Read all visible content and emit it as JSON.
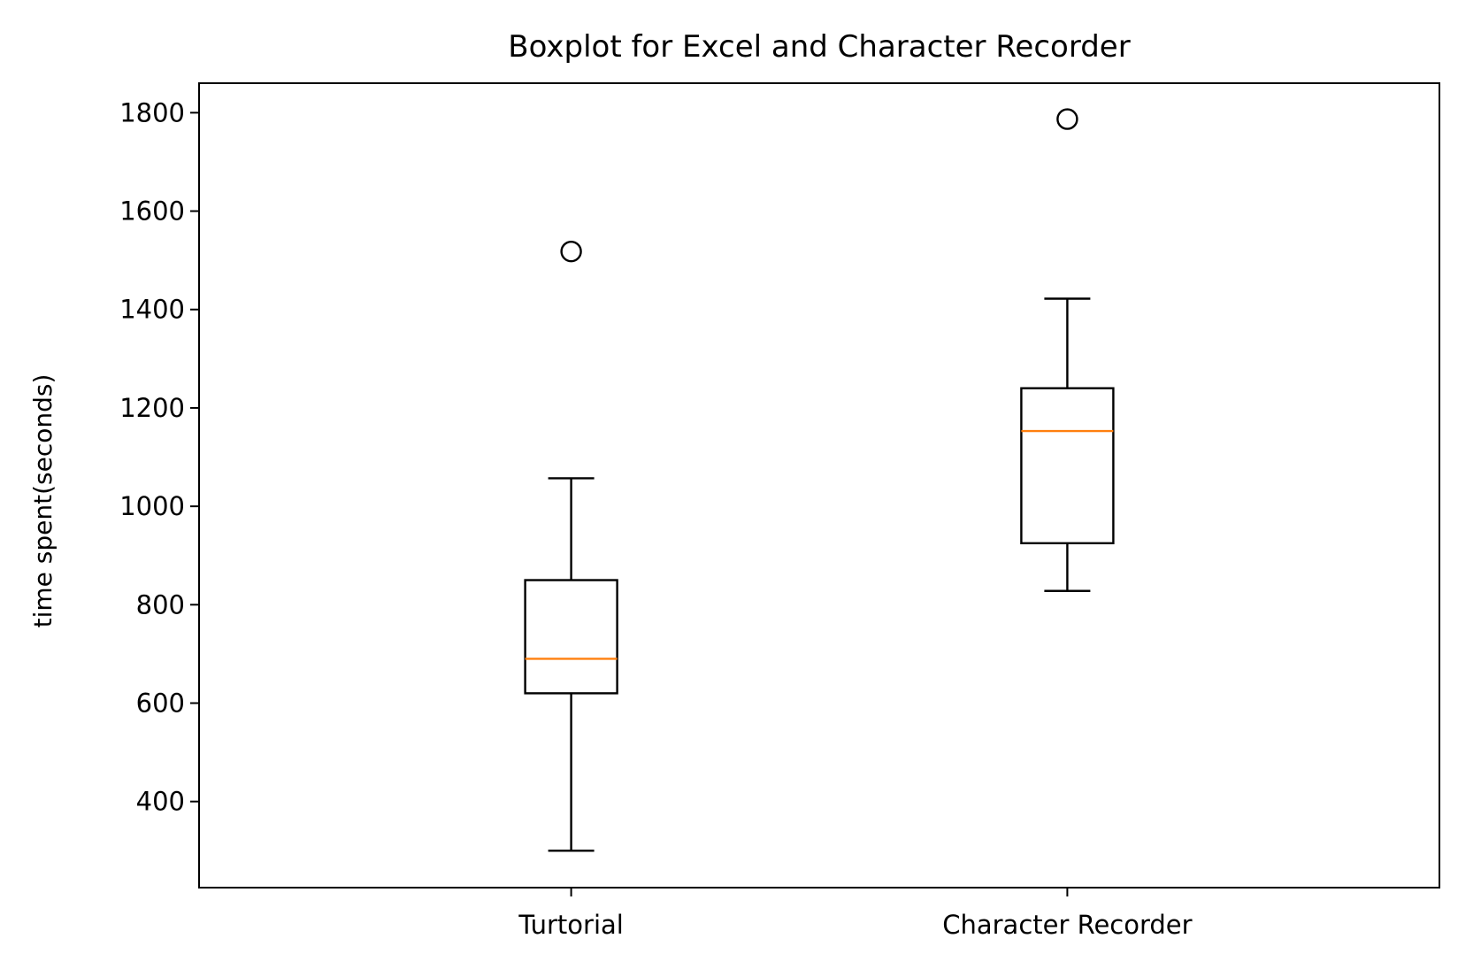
{
  "chart_data": {
    "type": "boxplot",
    "title": "Boxplot for Excel and Character Recorder",
    "xlabel": "",
    "ylabel": "time spent(seconds)",
    "ylim": [
      225,
      1860
    ],
    "yticks": [
      400,
      600,
      800,
      1000,
      1200,
      1400,
      1600,
      1800
    ],
    "categories": [
      "Turtorial",
      "Character Recorder"
    ],
    "boxes": [
      {
        "label": "Turtorial",
        "whisker_low": 300,
        "q1": 620,
        "median": 690,
        "q3": 850,
        "whisker_high": 1057,
        "outliers": [
          1518
        ]
      },
      {
        "label": "Character Recorder",
        "whisker_low": 828,
        "q1": 925,
        "median": 1153,
        "q3": 1240,
        "whisker_high": 1422,
        "outliers": [
          1787
        ]
      }
    ],
    "colors": {
      "box": "#000000",
      "median": "#ff7f0e",
      "outlier": "#000000",
      "frame": "#000000"
    },
    "grid": false,
    "legend": "none"
  }
}
